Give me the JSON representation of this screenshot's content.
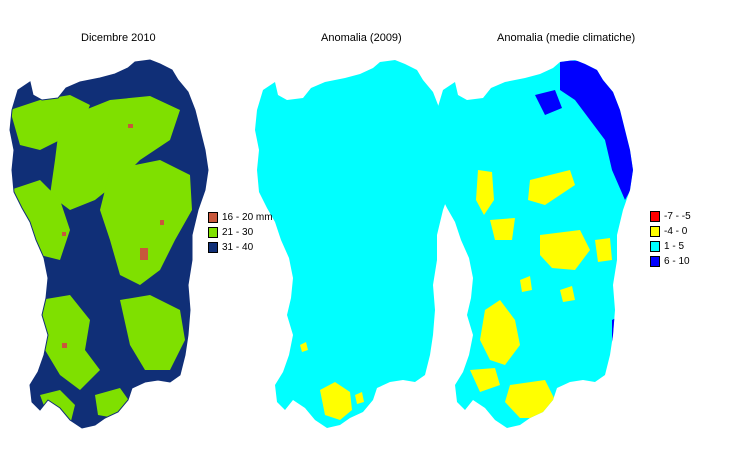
{
  "maps": [
    {
      "title": "Dicembre 2010",
      "base_color": "#102f77",
      "overlay_color": "#7fe000",
      "accent_color": "#c8583c",
      "legend": [
        {
          "label": "16 - 20 mm",
          "color": "#c8583c"
        },
        {
          "label": "21 - 30",
          "color": "#7fe000"
        },
        {
          "label": "31 - 40",
          "color": "#102f77"
        }
      ]
    },
    {
      "title": "Anomalia (2009)",
      "base_color": "#00ffff",
      "overlay_color": "#ffff00"
    },
    {
      "title": "Anomalia (medie climatiche)",
      "base_color": "#00ffff",
      "overlay_color": "#ffff00",
      "accent_color": "#0000ff",
      "legend": [
        {
          "label": "-7 - -5",
          "color": "#ff0000"
        },
        {
          "label": "-4 - 0",
          "color": "#ffff00"
        },
        {
          "label": "1 - 5",
          "color": "#00ffff"
        },
        {
          "label": "6 - 10",
          "color": "#0000ff"
        }
      ]
    }
  ]
}
